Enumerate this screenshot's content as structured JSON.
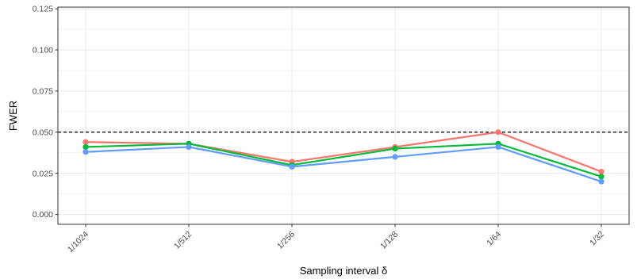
{
  "chart_data": {
    "type": "line",
    "title": "",
    "xlabel": "Sampling interval δ",
    "ylabel": "FWER",
    "categories": [
      "1/1024",
      "1/512",
      "1/256",
      "1/128",
      "1/64",
      "1/32"
    ],
    "ylim": [
      -0.006,
      0.126
    ],
    "yticks": [
      0.0,
      0.025,
      0.05,
      0.075,
      0.1,
      0.125
    ],
    "ytick_labels": [
      "0.000",
      "0.025",
      "0.050",
      "0.075",
      "0.100",
      "0.125"
    ],
    "grid": true,
    "legend": "none",
    "reference_line": {
      "y": 0.05,
      "style": "dashed",
      "color": "#000000"
    },
    "series": [
      {
        "color": "#F8766D",
        "values": [
          0.044,
          0.043,
          0.032,
          0.041,
          0.05,
          0.026
        ]
      },
      {
        "color": "#00BA38",
        "values": [
          0.041,
          0.043,
          0.03,
          0.04,
          0.043,
          0.023
        ]
      },
      {
        "color": "#619CFF",
        "values": [
          0.038,
          0.041,
          0.029,
          0.035,
          0.041,
          0.02
        ]
      }
    ]
  }
}
